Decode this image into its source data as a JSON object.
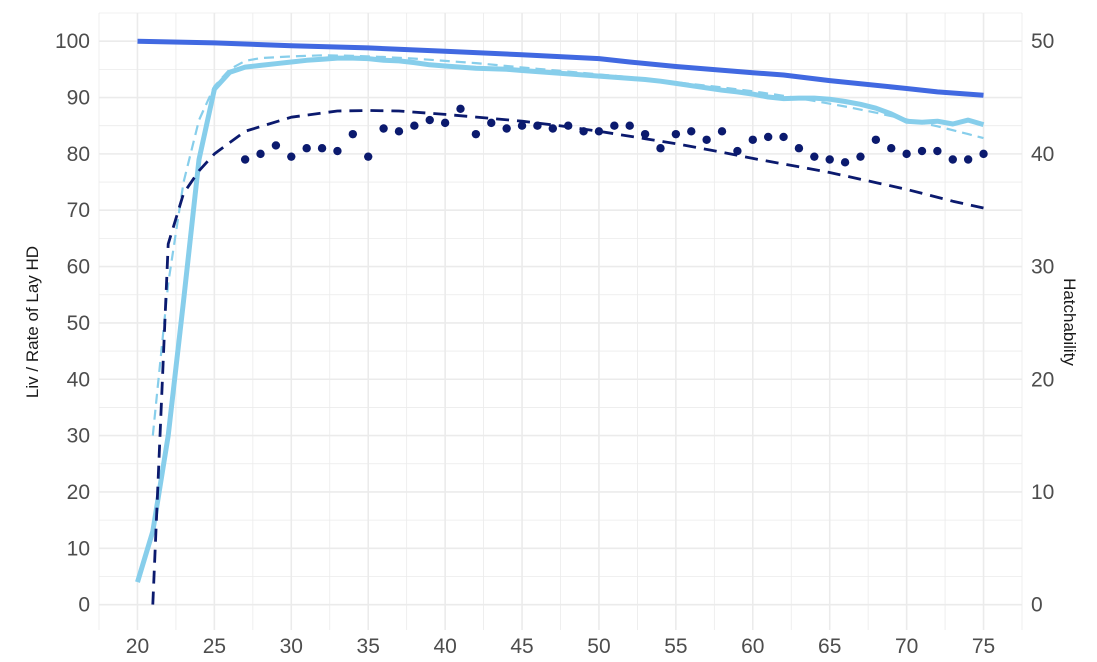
{
  "chart_data": {
    "type": "line",
    "title": "",
    "xlabel": "",
    "ylabel": "Liv / Rate of Lay HD",
    "y2label": "Hatchability",
    "xlim": [
      17.5,
      77.5
    ],
    "ylim": [
      -4.5,
      105
    ],
    "y2lim": [
      -2.25,
      52.5
    ],
    "x_ticks": [
      20,
      25,
      30,
      35,
      40,
      45,
      50,
      55,
      60,
      65,
      70,
      75
    ],
    "y_ticks": [
      0,
      10,
      20,
      30,
      40,
      50,
      60,
      70,
      80,
      90,
      100
    ],
    "y2_ticks": [
      0,
      10,
      20,
      30,
      40,
      50
    ],
    "grid": true,
    "legend": "none",
    "colors": {
      "livability": "#4169e1",
      "rate_of_lay_actual": "#87ceeb",
      "rate_of_lay_standard": "#87ceeb",
      "hatchability_standard": "#0b1a6e",
      "hatchability_actual": "#0b1a6e",
      "grid": "#ebebeb",
      "background": "#ffffff"
    },
    "series": [
      {
        "style": "solid-thick",
        "axis": "left",
        "x": [
          20,
          25,
          30,
          35,
          40,
          45,
          50,
          52,
          55,
          60,
          62,
          65,
          70,
          72,
          75
        ],
        "y": [
          100,
          99.7,
          99.2,
          98.8,
          98.2,
          97.6,
          96.9,
          96.3,
          95.5,
          94.4,
          94.0,
          93.0,
          91.6,
          91.0,
          90.4
        ]
      },
      {
        "style": "solid-thick",
        "axis": "left",
        "x": [
          20,
          21,
          22,
          23,
          24,
          25,
          26,
          27,
          28,
          29,
          30,
          31,
          32,
          33,
          34,
          35,
          36,
          37,
          38,
          39,
          40,
          41,
          42,
          43,
          44,
          45,
          46,
          47,
          48,
          49,
          50,
          51,
          52,
          53,
          54,
          55,
          56,
          57,
          58,
          59,
          60,
          61,
          62,
          63,
          64,
          65,
          66,
          67,
          68,
          69,
          70,
          71,
          72,
          73,
          74,
          75
        ],
        "y": [
          4,
          13,
          30,
          54,
          79,
          91.5,
          94.5,
          95.4,
          95.7,
          96,
          96.3,
          96.6,
          96.8,
          97,
          97,
          96.9,
          96.6,
          96.5,
          96.2,
          95.8,
          95.6,
          95.4,
          95.2,
          95.1,
          95,
          94.8,
          94.6,
          94.4,
          94.2,
          94,
          93.8,
          93.6,
          93.4,
          93.2,
          92.9,
          92.5,
          92.1,
          91.7,
          91.3,
          91,
          90.6,
          90.1,
          89.8,
          89.9,
          89.9,
          89.7,
          89.3,
          88.8,
          88.1,
          87.1,
          85.8,
          85.6,
          85.8,
          85.3,
          86,
          85.2
        ]
      },
      {
        "style": "dashed",
        "axis": "left",
        "x": [
          21,
          22,
          23,
          24,
          25,
          26,
          27,
          28,
          30,
          32,
          34,
          36,
          38,
          40,
          42,
          44,
          46,
          48,
          50,
          52,
          54,
          56,
          58,
          60,
          62,
          64,
          66,
          68,
          70,
          72,
          74,
          75
        ],
        "y": [
          30,
          57,
          75,
          86,
          92,
          95,
          96.5,
          97,
          97.3,
          97.5,
          97.4,
          97.2,
          96.9,
          96.5,
          96.1,
          95.6,
          95.1,
          94.6,
          94.1,
          93.6,
          93.0,
          92.4,
          91.8,
          91.1,
          90.3,
          89.4,
          88.4,
          87.3,
          86.1,
          84.9,
          83.5,
          82.8
        ]
      },
      {
        "style": "dashed",
        "axis": "left",
        "x": [
          21,
          22,
          23,
          24,
          25,
          27,
          30,
          33,
          35,
          37,
          40,
          43,
          45,
          48,
          50,
          53,
          55,
          58,
          60,
          63,
          65,
          68,
          70,
          73,
          75
        ],
        "y": [
          0,
          64,
          73,
          77,
          80,
          84,
          86.5,
          87.6,
          87.7,
          87.6,
          87,
          86.3,
          85.8,
          84.8,
          84,
          82.7,
          81.8,
          80.3,
          79.2,
          77.7,
          76.7,
          74.9,
          73.7,
          71.6,
          70.4
        ]
      },
      {
        "style": "dotted-points",
        "axis": "left",
        "x": [
          27,
          28,
          29,
          30,
          31,
          32,
          33,
          34,
          35,
          36,
          37,
          38,
          39,
          40,
          41,
          42,
          43,
          44,
          45,
          46,
          47,
          48,
          49,
          50,
          51,
          52,
          53,
          54,
          55,
          56,
          57,
          58,
          59,
          60,
          61,
          62,
          63,
          64,
          65,
          66,
          67,
          68,
          69,
          70,
          71,
          72,
          73,
          74,
          75
        ],
        "y": [
          79,
          80,
          81.5,
          79.5,
          81,
          81,
          80.5,
          83.5,
          79.5,
          84.5,
          84,
          85,
          86,
          85.5,
          88,
          83.5,
          85.5,
          84.5,
          85,
          85,
          84.5,
          85,
          84,
          84,
          85,
          85,
          83.5,
          81,
          83.5,
          84,
          82.5,
          84,
          80.5,
          82.5,
          83,
          83,
          81,
          79.5,
          79,
          78.5,
          79.5,
          82.5,
          81,
          80,
          80.5,
          80.5,
          79,
          79,
          80
        ]
      }
    ]
  }
}
